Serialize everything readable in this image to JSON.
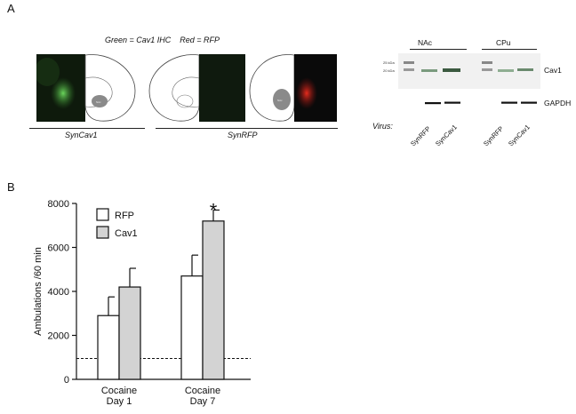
{
  "panel_a": {
    "letter": "A",
    "legend_line": "Green = Cav1 IHC    Red = RFP",
    "group_label_1": "SynCav1",
    "group_label_2": "SynRFP",
    "brain_region_label": "NAc",
    "blot": {
      "group_nac": "NAc",
      "group_cpu": "CPu",
      "marker_25": "25 kDa",
      "marker_20": "20 kDa",
      "row_cav1": "Cav1",
      "row_gapdh": "GAPDH",
      "virus_label": "Virus:",
      "lanes": [
        "SynRFP",
        "SynCav1",
        "SynRFP",
        "SynCav1"
      ]
    }
  },
  "panel_b": {
    "letter": "B",
    "chart_data": {
      "type": "bar",
      "categories": [
        "Cocaine\nDay 1",
        "Cocaine\nDay 7"
      ],
      "category_lines": [
        [
          "Cocaine",
          "Day 1"
        ],
        [
          "Cocaine",
          "Day 7"
        ]
      ],
      "series": [
        {
          "name": "RFP",
          "values": [
            2900,
            4700
          ],
          "errors": [
            850,
            950
          ],
          "fill": "#ffffff"
        },
        {
          "name": "Cav1",
          "values": [
            4200,
            7200
          ],
          "errors": [
            850,
            500
          ],
          "fill": "#d3d3d3"
        }
      ],
      "ylabel": "Ambulations /60 min",
      "xlabel": "",
      "ylim": [
        0,
        8000
      ],
      "yticks": [
        0,
        2000,
        4000,
        6000,
        8000
      ],
      "baseline": 950,
      "significance": "*",
      "legend_position": "top-left"
    }
  }
}
